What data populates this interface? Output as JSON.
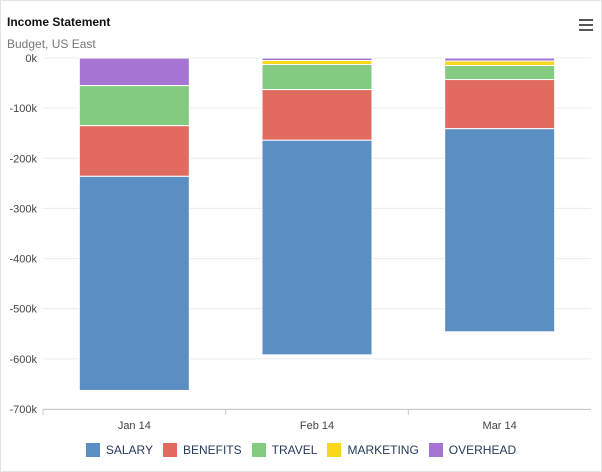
{
  "header": {
    "title": "Income Statement",
    "subtitle": "Budget, US East",
    "menu_icon": "hamburger-menu-icon"
  },
  "chart_data": {
    "type": "bar",
    "stacked": true,
    "title": "Income Statement",
    "subtitle": "Budget, US East",
    "categories": [
      "Jan 14",
      "Feb 14",
      "Mar 14"
    ],
    "series": [
      {
        "name": "SALARY",
        "color": "#5b8fc4",
        "values": [
          -427000,
          -428000,
          -405000
        ]
      },
      {
        "name": "BENEFITS",
        "color": "#e06b5e",
        "values": [
          -101000,
          -101000,
          -98000
        ]
      },
      {
        "name": "TRAVEL",
        "color": "#82cb80",
        "values": [
          -80000,
          -50000,
          -28000
        ]
      },
      {
        "name": "MARKETING",
        "color": "#f9d71c",
        "values": [
          0,
          -8000,
          -9000
        ]
      },
      {
        "name": "OVERHEAD",
        "color": "#a675d3",
        "values": [
          -55000,
          -5000,
          -6000
        ]
      }
    ],
    "y_ticks": [
      "0k",
      "-100k",
      "-200k",
      "-300k",
      "-400k",
      "-500k",
      "-600k",
      "-700k"
    ],
    "ylim": [
      -700000,
      0
    ],
    "xlabel": "",
    "ylabel": "",
    "grid": true,
    "legend_position": "bottom-center"
  }
}
